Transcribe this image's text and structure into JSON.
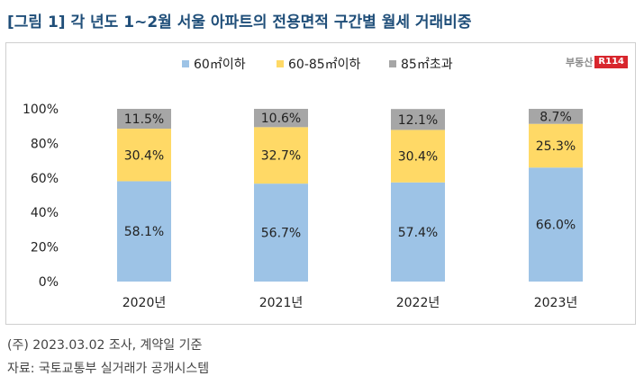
{
  "title": "[그림 1] 각 년도 1~2월 서울 아파트의 전용면적 구간별 월세 거래비중",
  "logo": {
    "text": "부동산",
    "badge": "R114"
  },
  "note": "(주) 2023.03.02 조사, 계약일 기준",
  "source": "자료: 국토교통부 실거래가 공개시스템",
  "colors": {
    "small": "#9dc3e6",
    "mid": "#ffd966",
    "large": "#a6a6a6"
  },
  "chart_data": {
    "type": "bar",
    "stacked": true,
    "categories": [
      "2020년",
      "2021년",
      "2022년",
      "2023년"
    ],
    "series": [
      {
        "name": "60㎡이하",
        "values": [
          58.1,
          56.7,
          57.4,
          66.0
        ],
        "labels": [
          "58.1%",
          "56.7%",
          "57.4%",
          "66.0%"
        ]
      },
      {
        "name": "60-85㎡이하",
        "values": [
          30.4,
          32.7,
          30.4,
          25.3
        ],
        "labels": [
          "30.4%",
          "32.7%",
          "30.4%",
          "25.3%"
        ]
      },
      {
        "name": "85㎡초과",
        "values": [
          11.5,
          10.6,
          12.1,
          8.7
        ],
        "labels": [
          "11.5%",
          "10.6%",
          "12.1%",
          "8.7%"
        ]
      }
    ],
    "ylim": [
      0,
      100
    ],
    "yticks": [
      "0%",
      "20%",
      "40%",
      "60%",
      "80%",
      "100%"
    ],
    "legend": "top-center",
    "grid": false
  }
}
